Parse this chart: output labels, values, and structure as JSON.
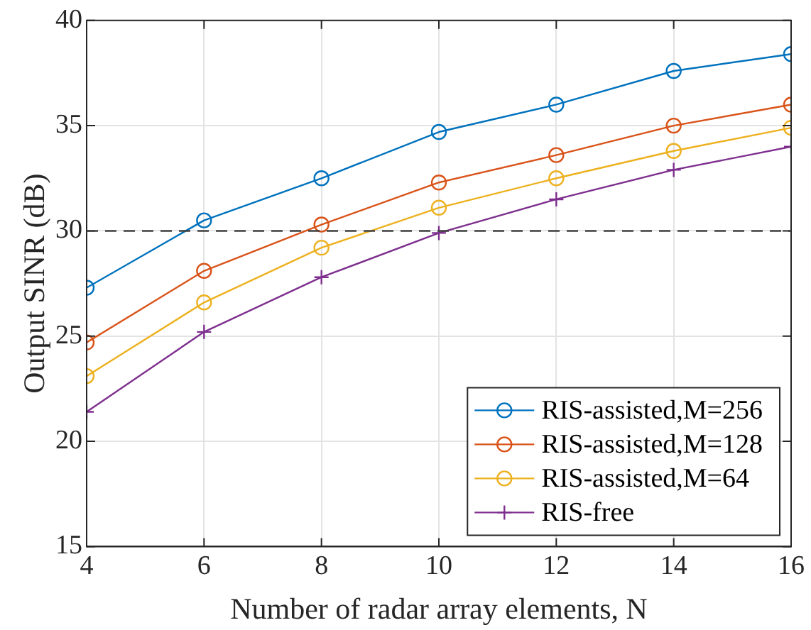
{
  "chart_data": {
    "type": "line",
    "xlabel": "Number of radar array elements, N",
    "ylabel": "Output SINR (dB)",
    "x": [
      4,
      6,
      8,
      10,
      12,
      14,
      16
    ],
    "series": [
      {
        "name": "RIS-assisted,M=256",
        "color": "#0072bd",
        "marker": "circle",
        "values": [
          27.3,
          30.5,
          32.5,
          34.7,
          36.0,
          37.6,
          38.4
        ]
      },
      {
        "name": "RIS-assisted,M=128",
        "color": "#d95319",
        "marker": "circle",
        "values": [
          24.7,
          28.1,
          30.3,
          32.3,
          33.6,
          35.0,
          36.0
        ]
      },
      {
        "name": "RIS-assisted,M=64",
        "color": "#edb120",
        "marker": "circle",
        "values": [
          23.1,
          26.6,
          29.2,
          31.1,
          32.5,
          33.8,
          34.9
        ]
      },
      {
        "name": "RIS-free",
        "color": "#7e2f8e",
        "marker": "cross",
        "values": [
          21.4,
          25.2,
          27.8,
          29.9,
          31.5,
          32.9,
          34.0
        ]
      }
    ],
    "xlim": [
      4,
      16
    ],
    "xticks": [
      4,
      6,
      8,
      10,
      12,
      14,
      16
    ],
    "ylim": [
      15,
      40
    ],
    "yticks": [
      15,
      20,
      25,
      30,
      35,
      40
    ],
    "ref_lines": [
      {
        "axis": "y",
        "value": 30,
        "color": "#404040",
        "line_style": "dashed"
      }
    ],
    "grid": true,
    "legend": "bottom right"
  }
}
